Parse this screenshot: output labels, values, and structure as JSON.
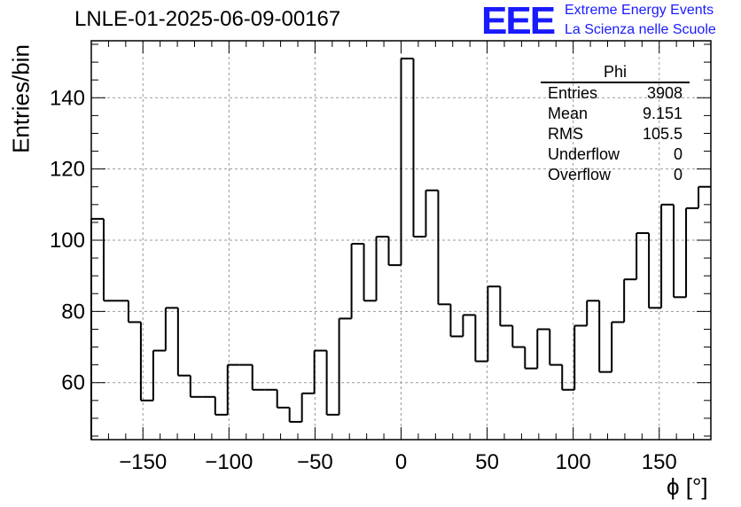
{
  "title": "LNLE-01-2025-06-09-00167",
  "logo": {
    "mark": "EEE",
    "line1": "Extreme Energy Events",
    "line2": "La Scienza nelle Scuole",
    "color": "#1a1aff"
  },
  "stats": {
    "name": "Phi",
    "rows": [
      {
        "key": "Entries",
        "value": "3908"
      },
      {
        "key": "Mean",
        "value": "9.151"
      },
      {
        "key": "RMS",
        "value": "105.5"
      },
      {
        "key": "Underflow",
        "value": "0"
      },
      {
        "key": "Overflow",
        "value": "0"
      }
    ]
  },
  "chart_data": {
    "type": "bar",
    "xlabel": "ϕ [°]",
    "ylabel": "Entries/bin",
    "xlim": [
      -180,
      180
    ],
    "ylim": [
      44,
      156
    ],
    "grid": true,
    "bin_width": 7.2,
    "values": [
      106,
      83,
      83,
      77,
      55,
      69,
      81,
      62,
      56,
      56,
      51,
      65,
      65,
      58,
      58,
      53,
      49,
      57,
      69,
      51,
      78,
      99,
      83,
      101,
      93,
      151,
      101,
      114,
      82,
      73,
      79,
      66,
      87,
      76,
      70,
      64,
      75,
      65,
      58,
      76,
      83,
      63,
      77,
      89,
      102,
      81,
      110,
      84,
      109,
      115
    ],
    "xticks": [
      -150,
      -100,
      -50,
      0,
      50,
      100,
      150
    ],
    "yticks": [
      60,
      80,
      100,
      120,
      140
    ]
  }
}
